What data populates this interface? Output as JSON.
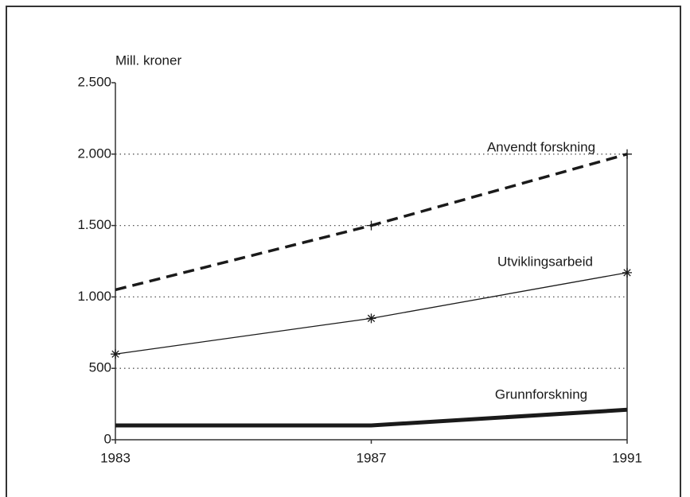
{
  "chart_data": {
    "type": "line",
    "ylabel": "Mill. kroner",
    "x": [
      1983,
      1987,
      1991
    ],
    "xlim": [
      1983,
      1991
    ],
    "xticks": [
      1983,
      1987,
      1991
    ],
    "ylim": [
      0,
      2500
    ],
    "yticks": [
      0,
      500,
      {
        "value": 1000,
        "label": "1.000"
      },
      {
        "value": 1500,
        "label": "1.500"
      },
      {
        "value": 2000,
        "label": "2.000"
      },
      {
        "value": 2500,
        "label": "2.500"
      }
    ],
    "grid": true,
    "series": [
      {
        "name": "Anvendt forskning",
        "color": "#1a1a1a",
        "linestyle": "dashed",
        "marker": "+",
        "values": [
          1050,
          1500,
          2000
        ]
      },
      {
        "name": "Utviklingsarbeid",
        "color": "#1a1a1a",
        "linestyle": "solid",
        "marker": "*",
        "values": [
          600,
          850,
          1170
        ]
      },
      {
        "name": "Grunnforskning",
        "color": "#1a1a1a",
        "linestyle": "solid",
        "values": [
          100,
          100,
          210
        ]
      }
    ]
  }
}
